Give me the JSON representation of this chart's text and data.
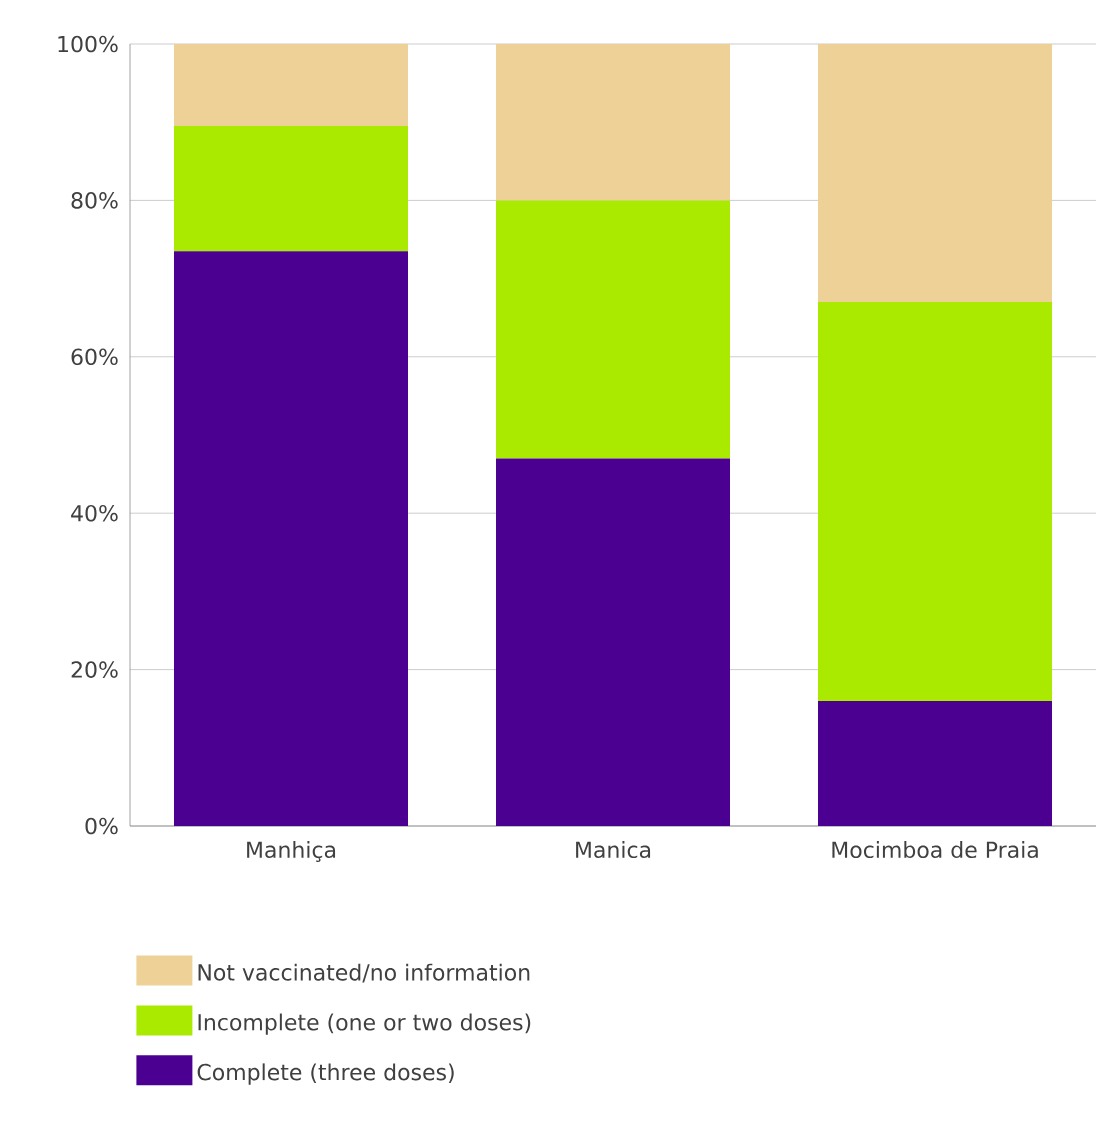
{
  "chart_data": {
    "type": "bar",
    "stacked": true,
    "categories": [
      "Manhiça",
      "Manica",
      "Mocimboa de Praia"
    ],
    "series": [
      {
        "name": "Complete (three doses)",
        "color": "#4b0092",
        "values": [
          73.5,
          47,
          16
        ]
      },
      {
        "name": "Incomplete (one or two doses)",
        "color": "#aaea00",
        "values": [
          16,
          33,
          51
        ]
      },
      {
        "name": "Not vaccinated/no information",
        "color": "#eed196",
        "values": [
          10.5,
          20,
          33
        ]
      }
    ],
    "ylim": [
      0,
      100
    ],
    "yticks": [
      {
        "value": 0,
        "label": "0%"
      },
      {
        "value": 20,
        "label": "20%"
      },
      {
        "value": 40,
        "label": "40%"
      },
      {
        "value": 60,
        "label": "60%"
      },
      {
        "value": 80,
        "label": "80%"
      },
      {
        "value": 100,
        "label": "100%"
      }
    ],
    "grid": "y",
    "legend": "bottom"
  }
}
